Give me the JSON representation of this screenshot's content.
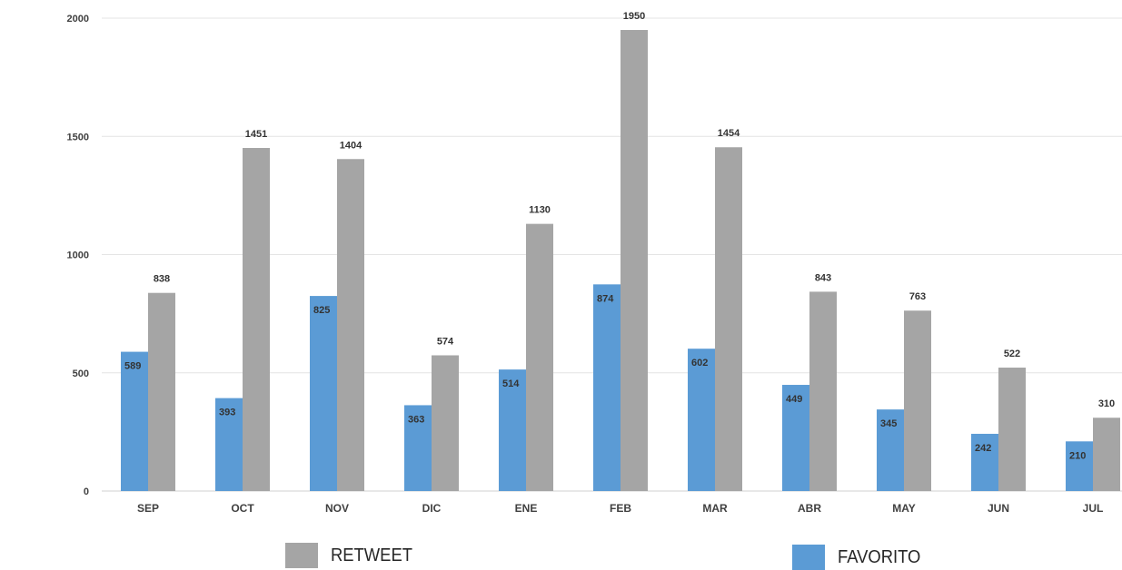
{
  "chart_data": {
    "type": "bar",
    "categories": [
      "SEP",
      "OCT",
      "NOV",
      "DIC",
      "ENE",
      "FEB",
      "MAR",
      "ABR",
      "MAY",
      "JUN",
      "JUL"
    ],
    "series": [
      {
        "name": "FAVORITO",
        "color": "#5b9bd5",
        "values": [
          589,
          393,
          825,
          363,
          514,
          874,
          602,
          449,
          345,
          242,
          210
        ]
      },
      {
        "name": "RETWEET",
        "color": "#a5a5a5",
        "values": [
          838,
          1451,
          1404,
          574,
          1130,
          1950,
          1454,
          843,
          763,
          522,
          310
        ]
      }
    ],
    "ylim": [
      0,
      2000
    ],
    "yticks": [
      "0",
      "500",
      "1000",
      "1500",
      "2000"
    ],
    "grid": true,
    "legend": {
      "placement": "bottom",
      "items": [
        {
          "label": "RETWEET",
          "color": "#a5a5a5"
        },
        {
          "label": "FAVORITO",
          "color": "#5b9bd5"
        }
      ]
    }
  }
}
